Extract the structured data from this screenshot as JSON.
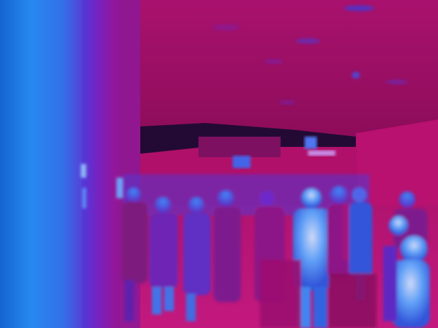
{
  "image": {
    "kind": "thermal-camera-frame",
    "palette": {
      "cold": "#0c0f2a",
      "cool": "#1e6cf0",
      "mid": "#6a20d0",
      "warm": "#b0106a",
      "hot": "#d02090",
      "hottest": "#cfe6ff"
    }
  }
}
